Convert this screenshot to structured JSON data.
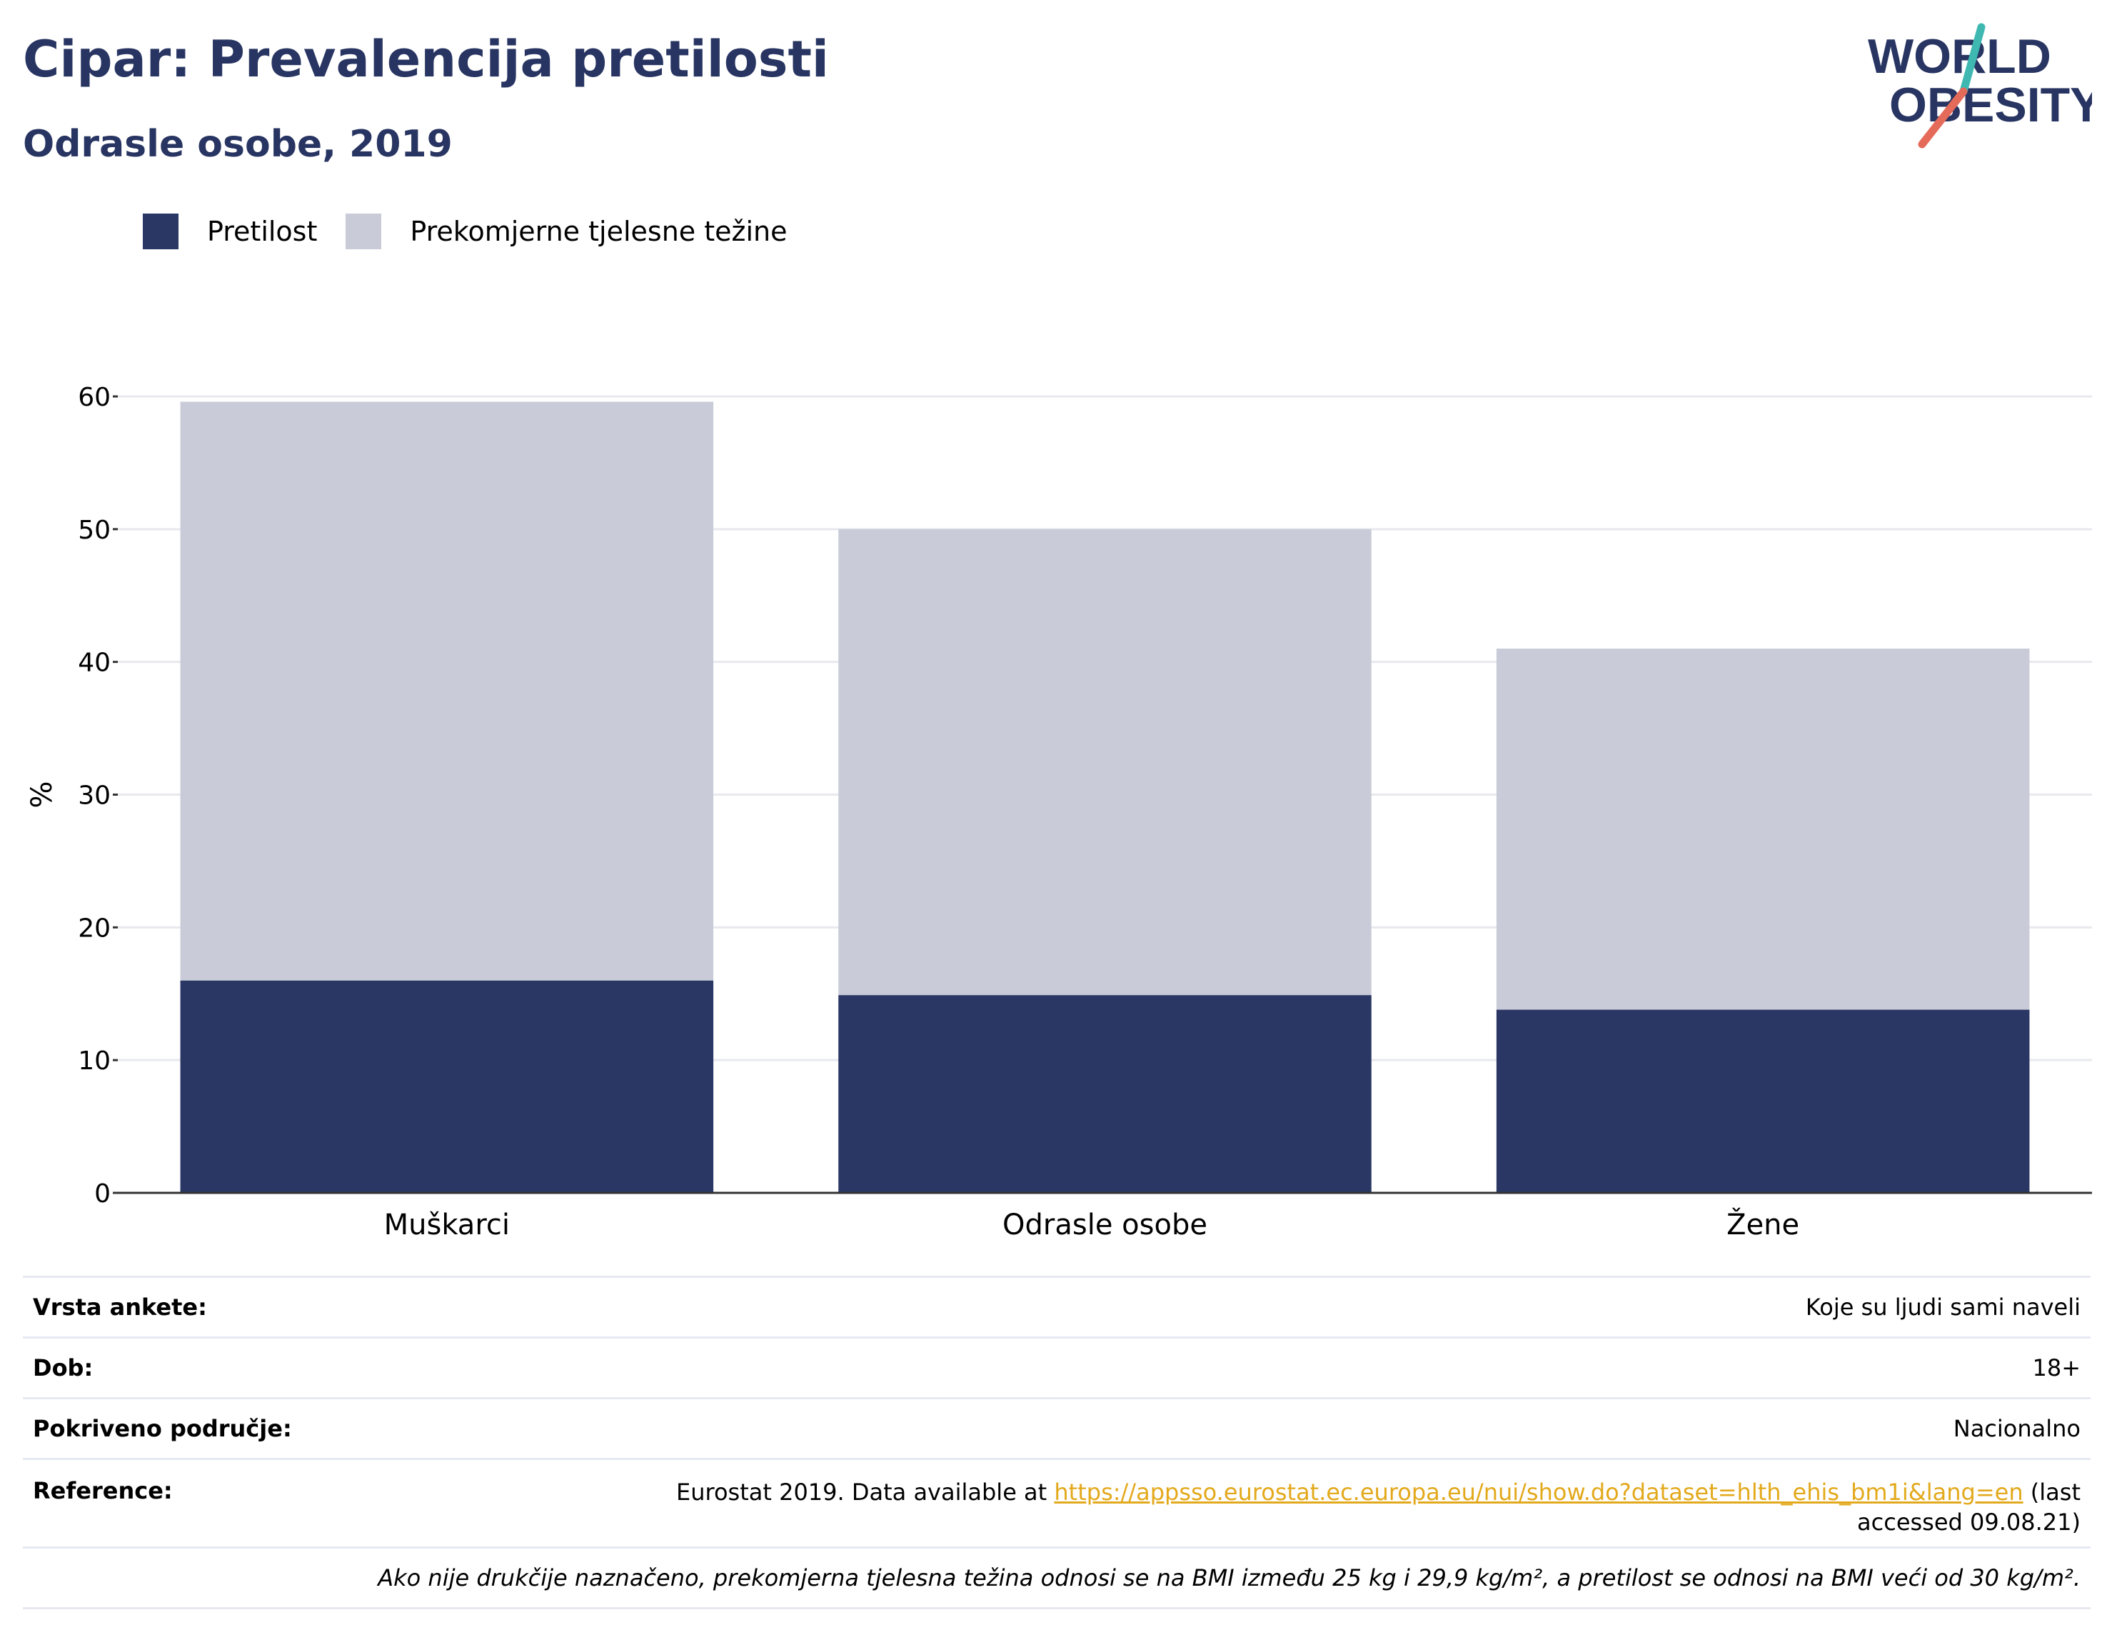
{
  "header": {
    "title": "Cipar: Prevalencija pretilosti",
    "subtitle": "Odrasle osobe, 2019",
    "logo_line1": "WORLD",
    "logo_line2": "OBESITY"
  },
  "colors": {
    "obesity": "#2a3764",
    "overweight": "#c9ccd8",
    "title": "#283562",
    "grid": "#e8e9ee",
    "link": "#e3a91c"
  },
  "chart_data": {
    "type": "bar",
    "stacked": true,
    "categories": [
      "Muškarci",
      "Odrasle osobe",
      "Žene"
    ],
    "series": [
      {
        "name": "Pretilost",
        "values": [
          16.0,
          14.9,
          13.8
        ]
      },
      {
        "name": "Prekomjerne tjelesne težine",
        "values": [
          43.6,
          35.1,
          27.2
        ]
      }
    ],
    "ylabel": "%",
    "ylim": [
      0,
      60
    ],
    "yticks": [
      0,
      10,
      20,
      30,
      40,
      50,
      60
    ],
    "grid": true,
    "legend_position": "top-left"
  },
  "info": {
    "survey_label": "Vrsta ankete:",
    "survey_value": "Koje su ljudi sami naveli",
    "age_label": "Dob:",
    "age_value": "18+",
    "coverage_label": "Pokriveno područje:",
    "coverage_value": "Nacionalno",
    "reference_label": "Reference:",
    "reference_prefix": "Eurostat 2019. Data available at ",
    "reference_link": "https://appsso.eurostat.ec.europa.eu/nui/show.do?dataset=hlth_ehis_bm1i&lang=en",
    "reference_suffix": " (last accessed 09.08.21)",
    "note": "Ako nije drukčije naznačeno, prekomjerna tjelesna težina odnosi se na BMI između 25 kg i 29,9 kg/m², a pretilost se odnosi na BMI veći od 30 kg/m²."
  }
}
